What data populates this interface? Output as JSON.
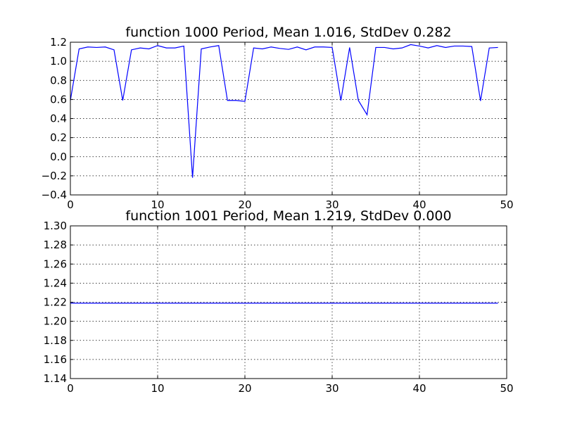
{
  "chart_data": [
    {
      "type": "line",
      "title": "function 1000 Period, Mean 1.016, StdDev 0.282",
      "xlabel": "",
      "ylabel": "",
      "xlim": [
        0,
        50
      ],
      "ylim": [
        -0.4,
        1.2
      ],
      "xticks": [
        0,
        10,
        20,
        30,
        40,
        50
      ],
      "xtick_labels": [
        "0",
        "10",
        "20",
        "30",
        "40",
        "50"
      ],
      "yticks": [
        -0.4,
        -0.2,
        0.0,
        0.2,
        0.4,
        0.6,
        0.8,
        1.0,
        1.2
      ],
      "ytick_labels": [
        "−0.4",
        "−0.2",
        "0.0",
        "0.2",
        "0.4",
        "0.6",
        "0.8",
        "1.0",
        "1.2"
      ],
      "grid": true,
      "series": [
        {
          "color": "#0000ff",
          "x": [
            0,
            1,
            2,
            3,
            4,
            5,
            6,
            7,
            8,
            9,
            10,
            11,
            12,
            13,
            14,
            15,
            16,
            17,
            18,
            19,
            20,
            21,
            22,
            23,
            24,
            25,
            26,
            27,
            28,
            29,
            30,
            31,
            32,
            33,
            34,
            35,
            36,
            37,
            38,
            39,
            40,
            41,
            42,
            43,
            44,
            45,
            46,
            47,
            48,
            49
          ],
          "y": [
            0.59,
            1.13,
            1.15,
            1.145,
            1.15,
            1.12,
            0.59,
            1.12,
            1.14,
            1.13,
            1.165,
            1.14,
            1.14,
            1.16,
            -0.22,
            1.13,
            1.15,
            1.165,
            0.59,
            0.59,
            0.58,
            1.14,
            1.13,
            1.15,
            1.135,
            1.125,
            1.15,
            1.12,
            1.15,
            1.15,
            1.145,
            0.59,
            1.145,
            0.59,
            0.44,
            1.145,
            1.145,
            1.13,
            1.14,
            1.175,
            1.16,
            1.14,
            1.165,
            1.145,
            1.16,
            1.16,
            1.155,
            0.585,
            1.14,
            1.145
          ]
        }
      ]
    },
    {
      "type": "line",
      "title": "function 1001 Period, Mean 1.219, StdDev 0.000",
      "xlabel": "",
      "ylabel": "",
      "xlim": [
        0,
        50
      ],
      "ylim": [
        1.14,
        1.3
      ],
      "xticks": [
        0,
        10,
        20,
        30,
        40,
        50
      ],
      "xtick_labels": [
        "0",
        "10",
        "20",
        "30",
        "40",
        "50"
      ],
      "yticks": [
        1.14,
        1.16,
        1.18,
        1.2,
        1.22,
        1.24,
        1.26,
        1.28,
        1.3
      ],
      "ytick_labels": [
        "1.14",
        "1.16",
        "1.18",
        "1.20",
        "1.22",
        "1.24",
        "1.26",
        "1.28",
        "1.30"
      ],
      "grid": true,
      "series": [
        {
          "color": "#0000ff",
          "x": [
            0,
            1,
            2,
            3,
            4,
            5,
            6,
            7,
            8,
            9,
            10,
            11,
            12,
            13,
            14,
            15,
            16,
            17,
            18,
            19,
            20,
            21,
            22,
            23,
            24,
            25,
            26,
            27,
            28,
            29,
            30,
            31,
            32,
            33,
            34,
            35,
            36,
            37,
            38,
            39,
            40,
            41,
            42,
            43,
            44,
            45,
            46,
            47,
            48,
            49
          ],
          "y": [
            1.219,
            1.219,
            1.219,
            1.219,
            1.219,
            1.219,
            1.219,
            1.219,
            1.219,
            1.219,
            1.219,
            1.219,
            1.219,
            1.219,
            1.219,
            1.219,
            1.219,
            1.219,
            1.219,
            1.219,
            1.219,
            1.219,
            1.219,
            1.219,
            1.219,
            1.219,
            1.219,
            1.219,
            1.219,
            1.219,
            1.219,
            1.219,
            1.219,
            1.219,
            1.219,
            1.219,
            1.219,
            1.219,
            1.219,
            1.219,
            1.219,
            1.219,
            1.219,
            1.219,
            1.219,
            1.219,
            1.219,
            1.219,
            1.219,
            1.219
          ]
        }
      ]
    }
  ]
}
